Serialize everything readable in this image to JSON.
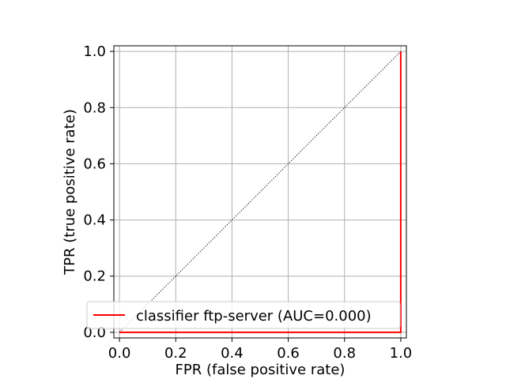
{
  "chart_data": {
    "type": "line",
    "title": "",
    "xlabel": "FPR (false positive rate)",
    "ylabel": "TPR (true positive rate)",
    "xlim": [
      -0.02,
      1.02
    ],
    "ylim": [
      -0.02,
      1.02
    ],
    "xticks": [
      0.0,
      0.2,
      0.4,
      0.6,
      0.8,
      1.0
    ],
    "yticks": [
      0.0,
      0.2,
      0.4,
      0.6,
      0.8,
      1.0
    ],
    "xtick_labels": [
      "0.0",
      "0.2",
      "0.4",
      "0.6",
      "0.8",
      "1.0"
    ],
    "ytick_labels": [
      "0.0",
      "0.2",
      "0.4",
      "0.6",
      "0.8",
      "1.0"
    ],
    "grid": true,
    "legend_position": "lower-right",
    "series": [
      {
        "name": "classifier ftp-server (AUC=0.000)",
        "color": "#ff0000",
        "style": "solid",
        "x": [
          0.0,
          1.0,
          1.0
        ],
        "y": [
          0.0,
          0.0,
          1.0
        ]
      },
      {
        "color": "#000000",
        "style": "dotted",
        "x": [
          0.0,
          1.0
        ],
        "y": [
          0.0,
          1.0
        ]
      }
    ]
  }
}
